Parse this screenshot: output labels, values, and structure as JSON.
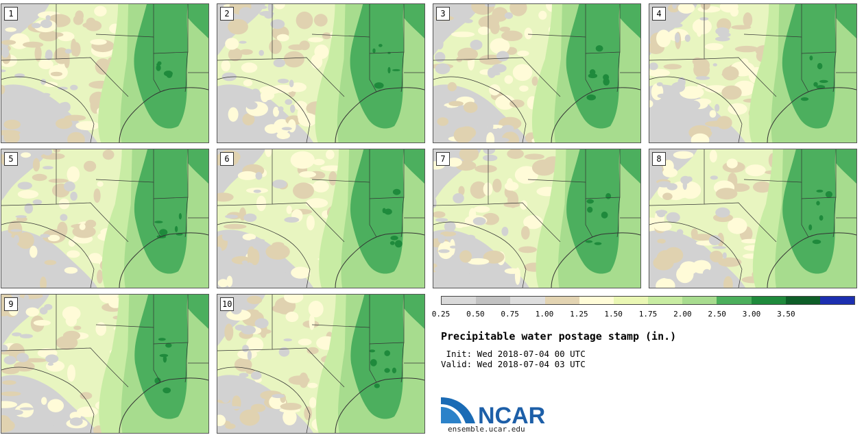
{
  "panels": [
    {
      "label": "1"
    },
    {
      "label": "2"
    },
    {
      "label": "3"
    },
    {
      "label": "4"
    },
    {
      "label": "5"
    },
    {
      "label": "6"
    },
    {
      "label": "7"
    },
    {
      "label": "8"
    },
    {
      "label": "9"
    },
    {
      "label": "10"
    }
  ],
  "legend": {
    "colors": [
      "#d9d9d9",
      "#c2c2c2",
      "#dedede",
      "#e3d4b2",
      "#fffcd8",
      "#eaf7b4",
      "#c8eca2",
      "#a8dc8f",
      "#4caf5c",
      "#1f8a3c",
      "#0e5e28",
      "#1c2fb0"
    ],
    "ticks": [
      "0.25",
      "0.50",
      "0.75",
      "1.00",
      "1.25",
      "1.50",
      "1.75",
      "2.00",
      "2.50",
      "3.00",
      "3.50"
    ]
  },
  "title": "Precipitable water postage stamp (in.)",
  "init_text": " Init: Wed 2018-07-04 00 UTC",
  "valid_text": "Valid: Wed 2018-07-04 03 UTC",
  "logo": {
    "text": "NCAR",
    "url": "ensemble.ucar.edu",
    "colors": {
      "arc": "#1a6bb5",
      "text": "#1d5fa8"
    }
  },
  "map_colors": {
    "base": "#e8f5c0",
    "gray": "#d2d2d2",
    "tan": "#e0d2b0",
    "cream": "#fffbd8",
    "lightgreen": "#c8eca4",
    "midgreen": "#a7dc8e",
    "green": "#4caf5e",
    "darkgreen": "#1f8a3c",
    "border": "#333333"
  }
}
